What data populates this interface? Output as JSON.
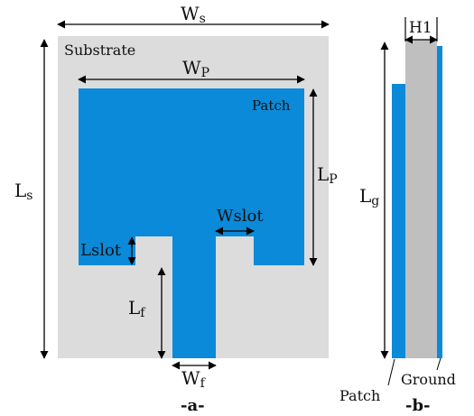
{
  "colors": {
    "substrate": "#dcdcdc",
    "patch": "#0a8ad8",
    "side_substrate": "#bfbfbf",
    "line": "#000000",
    "text": "#111111"
  },
  "panel_a": {
    "substrate_label": "Substrate",
    "patch_label": "Patch",
    "dims": {
      "ws": {
        "main": "W",
        "sub": "s"
      },
      "wp": {
        "main": "W",
        "sub": "P"
      },
      "ls": {
        "main": "L",
        "sub": "s"
      },
      "lp": {
        "main": "L",
        "sub": "P"
      },
      "wslot": {
        "main": "Wslot",
        "sub": ""
      },
      "lslot": {
        "main": "Lslot",
        "sub": ""
      },
      "lf": {
        "main": "L",
        "sub": "f"
      },
      "wf": {
        "main": "W",
        "sub": "f"
      }
    },
    "caption": "-a-"
  },
  "panel_b": {
    "dims": {
      "h1": "H1",
      "lg": {
        "main": "L",
        "sub": "g"
      }
    },
    "patch_label": "Patch",
    "ground_label": "Ground",
    "caption": "-b-"
  }
}
